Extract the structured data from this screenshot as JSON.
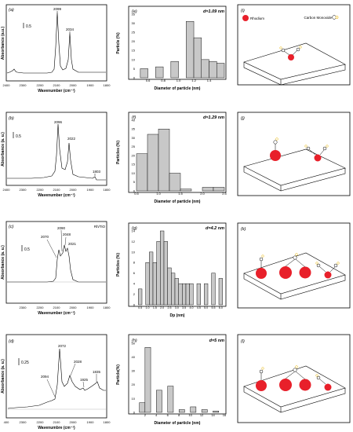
{
  "rows": [
    {
      "ir": {
        "panel_label": "(a)",
        "scale_label": "0.5",
        "peaks": [
          {
            "label": "2099"
          },
          {
            "label": "2034"
          }
        ],
        "x_ticks": [
          "2400",
          "2300",
          "2200",
          "2100",
          "2000",
          "1900",
          "1800"
        ],
        "xlabel": "Wavenumber (cm⁻¹)",
        "ylabel": "Absorbance (a.u.)"
      },
      "hist": {
        "panel_label": "(e)",
        "annotation": "d=1.09 nm",
        "x_ticks": [
          "0.6",
          "0.8",
          "1.0",
          "1.2",
          "1.4"
        ],
        "y_ticks": [
          "0",
          "5",
          "10",
          "15",
          "20",
          "25",
          "30",
          "35"
        ],
        "xlabel": "Diameter of particle (nm)",
        "ylabel": "Particle (%)"
      },
      "scheme": {
        "panel_label": "(i)",
        "legend": [
          "Rhodium",
          "Carbon Monoxide"
        ]
      }
    },
    {
      "ir": {
        "panel_label": "(b)",
        "scale_label": "0.5",
        "peaks": [
          {
            "label": "2096"
          },
          {
            "label": "2022"
          },
          {
            "label": "1803"
          }
        ],
        "x_ticks": [
          "2400",
          "2300",
          "2200",
          "2100",
          "2000",
          "1900",
          "1800"
        ],
        "xlabel": "Wavenumber (cm⁻¹)",
        "ylabel": "Absorbance (a. u.)"
      },
      "hist": {
        "panel_label": "(f)",
        "annotation": "d=1.29 nm",
        "x_ticks": [
          "0.5",
          "1.0",
          "1.5",
          "2.0",
          "2.5"
        ],
        "y_ticks": [
          "0",
          "5",
          "10",
          "15",
          "20",
          "25",
          "30",
          "35",
          "40"
        ],
        "xlabel": "Diameter of particle (nm)",
        "ylabel": "Particles (%)"
      },
      "scheme": {
        "panel_label": "(j)"
      }
    },
    {
      "ir": {
        "panel_label": "(c)",
        "scale_label": "0.5",
        "sample_label": "Rh/TiO",
        "peaks": [
          {
            "label": "2090"
          },
          {
            "label": "2070"
          },
          {
            "label": "2048"
          },
          {
            "label": "2021"
          }
        ],
        "x_ticks": [
          "2300",
          "2200",
          "2100",
          "2000",
          "1900",
          "1800"
        ],
        "xlabel": "Wavenumber (cm⁻¹)",
        "ylabel": "Absorbance (a. u.)"
      },
      "hist": {
        "panel_label": "(g)",
        "annotation": "d=4.2 nm",
        "x_ticks": [
          "0.5",
          "1.0",
          "1.5",
          "2.0",
          "2.5",
          "3.0",
          "3.5",
          "4.0",
          "4.5",
          "5.0",
          "5.5",
          "6.0"
        ],
        "y_ticks": [
          "0",
          "2",
          "4",
          "6",
          "8",
          "10",
          "12",
          "14"
        ],
        "xlabel": "Dp (nm)",
        "ylabel": "Particles (%)"
      },
      "scheme": {
        "panel_label": "(k)"
      }
    },
    {
      "ir": {
        "panel_label": "(d)",
        "scale_label": "0.25",
        "peaks": [
          {
            "label": "2072"
          },
          {
            "label": "2028"
          },
          {
            "label": "2094"
          },
          {
            "label": "1925"
          },
          {
            "label": "1835"
          }
        ],
        "x_ticks": [
          "400",
          "2300",
          "2200",
          "2100",
          "2000",
          "1900",
          "1800"
        ],
        "xlabel": "Wavenumbre (cm⁻¹)",
        "ylabel": "Absorbance (a. u.)"
      },
      "hist": {
        "panel_label": "(h)",
        "annotation": "d=5 nm",
        "x_ticks": [
          "2",
          "4",
          "6",
          "8",
          "10",
          "12",
          "14",
          "16"
        ],
        "y_ticks": [
          "0",
          "10",
          "20",
          "30",
          "40",
          "50"
        ],
        "xlabel": "Diameter of particle (nm)",
        "ylabel": "Particle(%)"
      },
      "scheme": {
        "panel_label": "(l)"
      }
    }
  ],
  "chart_data": [
    {
      "type": "bar",
      "panel": "(e)",
      "x": [
        0.55,
        0.75,
        0.95,
        1.15,
        1.25,
        1.35,
        1.45,
        1.55
      ],
      "values": [
        5,
        6,
        9,
        31,
        22,
        10,
        9,
        8
      ],
      "xlim": [
        0.45,
        1.6
      ],
      "ylim": [
        0,
        35
      ]
    },
    {
      "type": "bar",
      "panel": "(f)",
      "x": [
        0.625,
        0.875,
        1.125,
        1.375,
        1.625,
        2.125,
        2.375
      ],
      "values": [
        21,
        32,
        35,
        10,
        1,
        2,
        2
      ],
      "xlim": [
        0.5,
        2.5
      ],
      "ylim": [
        0,
        40
      ]
    },
    {
      "type": "bar",
      "panel": "(g)",
      "x": [
        0.5,
        1.0,
        1.25,
        1.5,
        1.75,
        2.0,
        2.25,
        2.5,
        2.75,
        3.0,
        3.25,
        3.5,
        3.75,
        4.0,
        4.5,
        5.0,
        5.5,
        6.0
      ],
      "values": [
        3,
        8,
        10,
        8,
        12,
        14,
        12,
        7,
        6,
        5,
        4,
        4,
        4,
        4,
        4,
        4,
        6,
        5
      ],
      "xlim": [
        0.25,
        6.25
      ],
      "ylim": [
        0,
        14
      ]
    },
    {
      "type": "bar",
      "panel": "(h)",
      "x": [
        1.5,
        2.5,
        4.5,
        6.5,
        8.5,
        10.5,
        12.5,
        14.5
      ],
      "values": [
        7,
        47,
        16,
        19,
        2,
        4,
        2,
        1
      ],
      "xlim": [
        0.5,
        16
      ],
      "ylim": [
        0,
        50
      ]
    }
  ]
}
